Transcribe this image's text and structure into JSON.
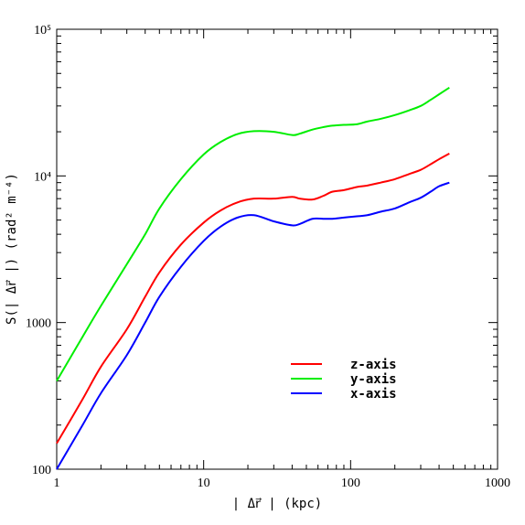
{
  "chart_data": {
    "type": "line",
    "title": "",
    "xlabel": "| Δr⃗ | (kpc)",
    "ylabel": "S(| Δr⃗ |) (rad² m⁻⁴)",
    "xscale": "log",
    "yscale": "log",
    "xlim": [
      1,
      1000
    ],
    "ylim": [
      100,
      100000
    ],
    "x_tick_labels": [
      "1",
      "10",
      "100",
      "1000"
    ],
    "x_tick_values": [
      1,
      10,
      100,
      1000
    ],
    "y_tick_labels": [
      "100",
      "1000",
      "10⁴",
      "10⁵"
    ],
    "y_tick_values": [
      100,
      1000,
      10000,
      100000
    ],
    "grid": false,
    "legend_position": "lower-right",
    "series": [
      {
        "name": "z-axis",
        "color": "#ff0000",
        "x": [
          1,
          1.5,
          2,
          3,
          4,
          5,
          7,
          10,
          13,
          17,
          22,
          30,
          40,
          45,
          55,
          65,
          75,
          90,
          110,
          130,
          160,
          200,
          250,
          300,
          350,
          400,
          470
        ],
        "y": [
          150,
          300,
          500,
          900,
          1500,
          2200,
          3400,
          4800,
          5800,
          6600,
          7000,
          7000,
          7200,
          7000,
          6900,
          7300,
          7800,
          8000,
          8400,
          8600,
          9000,
          9500,
          10300,
          11000,
          12000,
          13000,
          14200
        ]
      },
      {
        "name": "y-axis",
        "color": "#00ee00",
        "x": [
          1,
          1.5,
          2,
          3,
          4,
          5,
          7,
          10,
          13,
          17,
          22,
          30,
          40,
          45,
          55,
          65,
          75,
          90,
          110,
          130,
          160,
          200,
          250,
          300,
          350,
          400,
          470
        ],
        "y": [
          400,
          800,
          1300,
          2500,
          4000,
          6000,
          9500,
          14000,
          17000,
          19300,
          20200,
          20000,
          19000,
          19400,
          20700,
          21500,
          22000,
          22300,
          22500,
          23500,
          24500,
          26000,
          28000,
          30000,
          33000,
          36000,
          40000
        ]
      },
      {
        "name": "x-axis",
        "color": "#0000ff",
        "x": [
          1,
          1.5,
          2,
          3,
          4,
          5,
          7,
          10,
          13,
          17,
          22,
          30,
          40,
          45,
          55,
          65,
          75,
          90,
          110,
          130,
          160,
          200,
          250,
          300,
          350,
          400,
          470
        ],
        "y": [
          100,
          200,
          330,
          600,
          1000,
          1500,
          2400,
          3600,
          4500,
          5200,
          5400,
          4900,
          4600,
          4700,
          5100,
          5100,
          5100,
          5200,
          5300,
          5400,
          5700,
          6000,
          6600,
          7100,
          7800,
          8500,
          9000
        ]
      }
    ]
  }
}
